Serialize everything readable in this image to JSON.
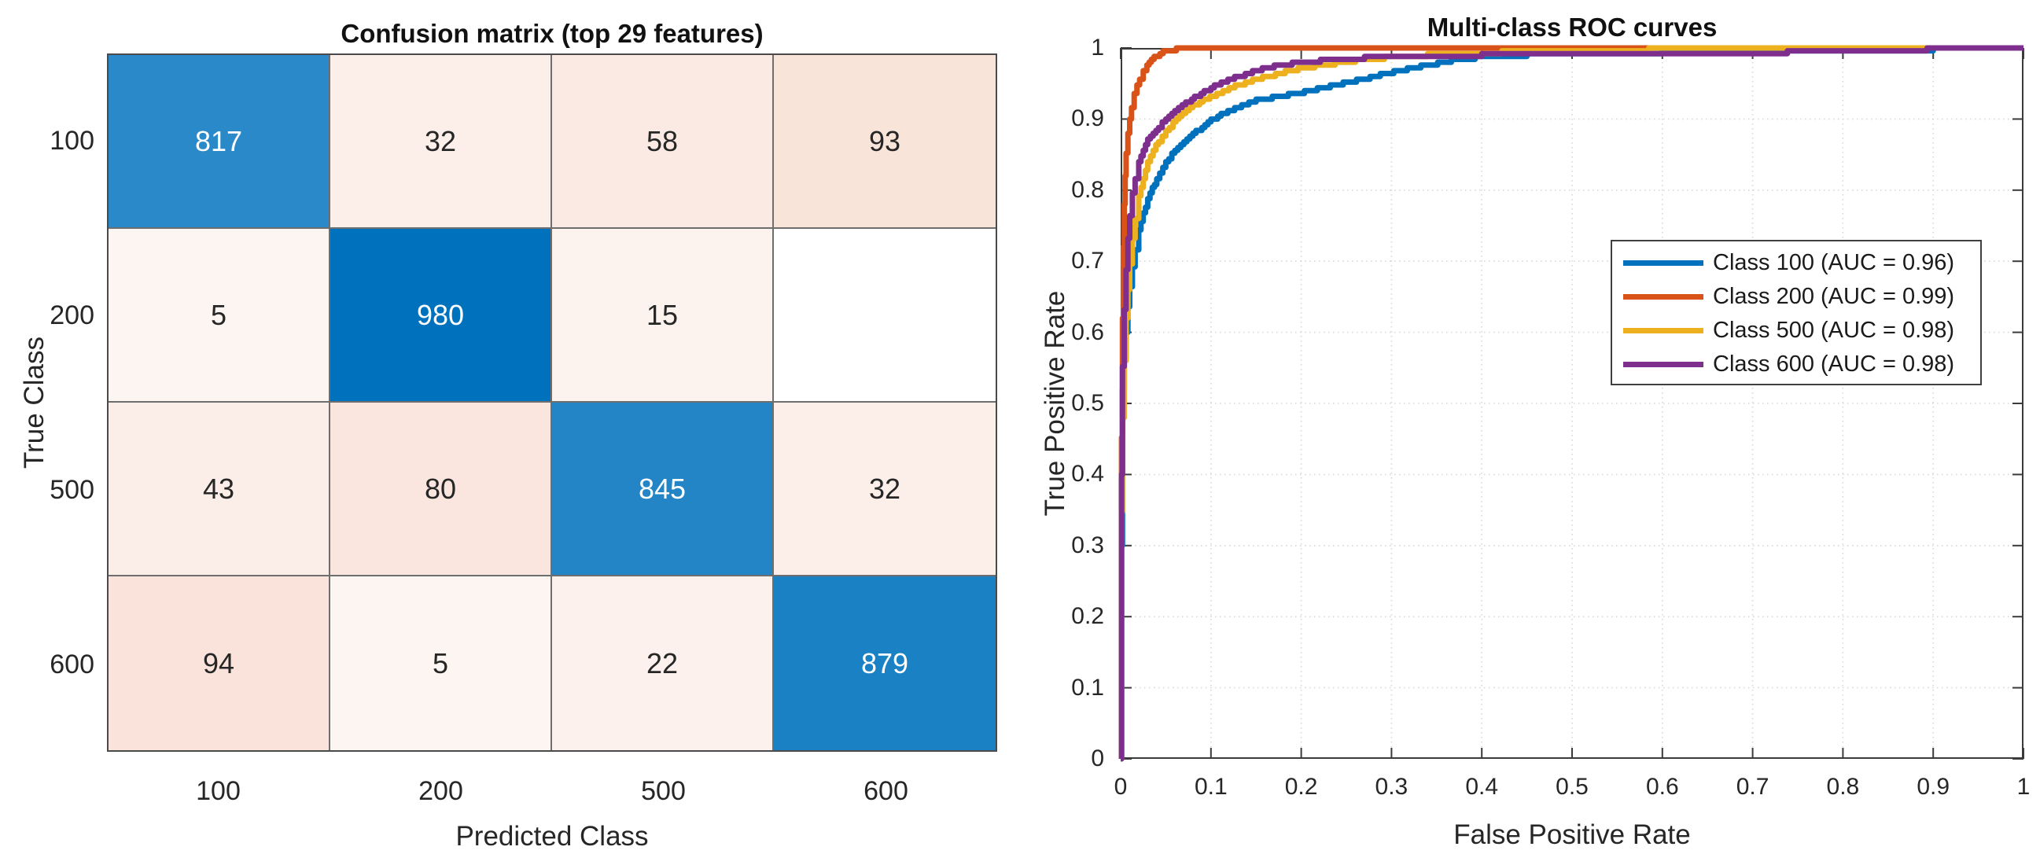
{
  "figure": {
    "background": "#ffffff",
    "axis_color": "#3b3b3b",
    "grid_color": "#d7d7d7",
    "tick_label_color": "#262626"
  },
  "chart_data": [
    {
      "type": "heatmap",
      "kind": "confusion-matrix",
      "title": "Confusion matrix (top 29 features)",
      "xlabel": "Predicted Class",
      "ylabel": "True Class",
      "classes": [
        "100",
        "200",
        "500",
        "600"
      ],
      "matrix": [
        [
          817,
          32,
          58,
          93
        ],
        [
          5,
          980,
          15,
          0
        ],
        [
          43,
          80,
          845,
          32
        ],
        [
          94,
          5,
          22,
          879
        ]
      ],
      "diagonal_color": "#0072BD",
      "offdiagonal_color": "#D95319",
      "diagonal_text_color": "#ffffff",
      "offdiagonal_text_color": "#262626",
      "zero_cell_color": "#ffffff",
      "grid_on": true
    },
    {
      "type": "line",
      "kind": "roc",
      "title": "Multi-class ROC curves",
      "xlabel": "False Positive Rate",
      "ylabel": "True Positive Rate",
      "xlim": [
        0,
        1
      ],
      "ylim": [
        0,
        1
      ],
      "x_ticks": [
        "0",
        "0.1",
        "0.2",
        "0.3",
        "0.4",
        "0.5",
        "0.6",
        "0.7",
        "0.8",
        "0.9",
        "1"
      ],
      "y_ticks": [
        "0",
        "0.1",
        "0.2",
        "0.3",
        "0.4",
        "0.5",
        "0.6",
        "0.7",
        "0.8",
        "0.9",
        "1"
      ],
      "grid": true,
      "legend_position": "inside-right",
      "series": [
        {
          "name": "Class 100",
          "auc": 0.96,
          "color": "#0072BD",
          "legend_label": "Class 100 (AUC = 0.96)",
          "points": [
            [
              0,
              0
            ],
            [
              0.001,
              0.3
            ],
            [
              0.002,
              0.52
            ],
            [
              0.004,
              0.565
            ],
            [
              0.006,
              0.6
            ],
            [
              0.008,
              0.635
            ],
            [
              0.01,
              0.662
            ],
            [
              0.013,
              0.692
            ],
            [
              0.016,
              0.716
            ],
            [
              0.02,
              0.742
            ],
            [
              0.025,
              0.766
            ],
            [
              0.03,
              0.786
            ],
            [
              0.035,
              0.802
            ],
            [
              0.04,
              0.816
            ],
            [
              0.05,
              0.838
            ],
            [
              0.06,
              0.856
            ],
            [
              0.07,
              0.869
            ],
            [
              0.08,
              0.879
            ],
            [
              0.09,
              0.889
            ],
            [
              0.1,
              0.899
            ],
            [
              0.115,
              0.909
            ],
            [
              0.13,
              0.917
            ],
            [
              0.15,
              0.926
            ],
            [
              0.175,
              0.932
            ],
            [
              0.2,
              0.937
            ],
            [
              0.225,
              0.945
            ],
            [
              0.25,
              0.952
            ],
            [
              0.28,
              0.96
            ],
            [
              0.31,
              0.968
            ],
            [
              0.34,
              0.976
            ],
            [
              0.37,
              0.983
            ],
            [
              0.4,
              0.987
            ],
            [
              0.45,
              0.99
            ],
            [
              0.5,
              0.992
            ],
            [
              0.55,
              0.993
            ],
            [
              0.6,
              0.994
            ],
            [
              0.7,
              0.995
            ],
            [
              0.8,
              0.9965
            ],
            [
              0.9,
              0.998
            ],
            [
              0.96,
              0.999
            ],
            [
              1,
              1
            ]
          ]
        },
        {
          "name": "Class 200",
          "auc": 0.99,
          "color": "#D95319",
          "legend_label": "Class 200 (AUC = 0.99)",
          "points": [
            [
              0,
              0
            ],
            [
              0.001,
              0.45
            ],
            [
              0.002,
              0.62
            ],
            [
              0.003,
              0.72
            ],
            [
              0.004,
              0.78
            ],
            [
              0.005,
              0.82
            ],
            [
              0.006,
              0.85
            ],
            [
              0.008,
              0.88
            ],
            [
              0.01,
              0.9
            ],
            [
              0.012,
              0.916
            ],
            [
              0.015,
              0.934
            ],
            [
              0.018,
              0.948
            ],
            [
              0.021,
              0.958
            ],
            [
              0.025,
              0.968
            ],
            [
              0.029,
              0.976
            ],
            [
              0.034,
              0.983
            ],
            [
              0.04,
              0.989
            ],
            [
              0.047,
              0.994
            ],
            [
              0.055,
              0.997
            ],
            [
              0.065,
              0.999
            ],
            [
              0.08,
              1
            ],
            [
              1,
              1
            ]
          ]
        },
        {
          "name": "Class 500",
          "auc": 0.98,
          "color": "#EDB120",
          "legend_label": "Class 500 (AUC = 0.98)",
          "points": [
            [
              0,
              0
            ],
            [
              0.001,
              0.35
            ],
            [
              0.002,
              0.48
            ],
            [
              0.004,
              0.56
            ],
            [
              0.006,
              0.62
            ],
            [
              0.008,
              0.66
            ],
            [
              0.01,
              0.695
            ],
            [
              0.013,
              0.73
            ],
            [
              0.016,
              0.76
            ],
            [
              0.02,
              0.79
            ],
            [
              0.025,
              0.815
            ],
            [
              0.03,
              0.838
            ],
            [
              0.036,
              0.856
            ],
            [
              0.042,
              0.868
            ],
            [
              0.05,
              0.882
            ],
            [
              0.058,
              0.894
            ],
            [
              0.068,
              0.906
            ],
            [
              0.08,
              0.918
            ],
            [
              0.095,
              0.929
            ],
            [
              0.11,
              0.938
            ],
            [
              0.13,
              0.948
            ],
            [
              0.15,
              0.956
            ],
            [
              0.175,
              0.964
            ],
            [
              0.2,
              0.971
            ],
            [
              0.23,
              0.977
            ],
            [
              0.26,
              0.982
            ],
            [
              0.3,
              0.987
            ],
            [
              0.34,
              0.99
            ],
            [
              0.38,
              0.992
            ],
            [
              0.43,
              0.9945
            ],
            [
              0.48,
              0.996
            ],
            [
              0.55,
              0.9975
            ],
            [
              0.62,
              0.9985
            ],
            [
              0.7,
              0.9992
            ],
            [
              0.8,
              0.9998
            ],
            [
              0.85,
              1
            ],
            [
              1,
              1
            ]
          ]
        },
        {
          "name": "Class 600",
          "auc": 0.98,
          "color": "#7E2F8E",
          "legend_label": "Class 600 (AUC = 0.98)",
          "points": [
            [
              0,
              0
            ],
            [
              0.001,
              0.4
            ],
            [
              0.002,
              0.55
            ],
            [
              0.004,
              0.63
            ],
            [
              0.006,
              0.69
            ],
            [
              0.008,
              0.73
            ],
            [
              0.01,
              0.765
            ],
            [
              0.013,
              0.795
            ],
            [
              0.016,
              0.818
            ],
            [
              0.02,
              0.84
            ],
            [
              0.025,
              0.857
            ],
            [
              0.03,
              0.87
            ],
            [
              0.036,
              0.88
            ],
            [
              0.042,
              0.889
            ],
            [
              0.05,
              0.9
            ],
            [
              0.06,
              0.911
            ],
            [
              0.072,
              0.922
            ],
            [
              0.085,
              0.933
            ],
            [
              0.1,
              0.944
            ],
            [
              0.115,
              0.953
            ],
            [
              0.13,
              0.96
            ],
            [
              0.15,
              0.968
            ],
            [
              0.17,
              0.974
            ],
            [
              0.19,
              0.978
            ],
            [
              0.21,
              0.981
            ],
            [
              0.24,
              0.984
            ],
            [
              0.27,
              0.986
            ],
            [
              0.3,
              0.9875
            ],
            [
              0.35,
              0.989
            ],
            [
              0.4,
              0.99
            ],
            [
              0.45,
              0.991
            ],
            [
              0.5,
              0.9915
            ],
            [
              0.6,
              0.9925
            ],
            [
              0.7,
              0.9935
            ],
            [
              0.8,
              0.9948
            ],
            [
              0.85,
              0.996
            ],
            [
              0.88,
              0.997
            ],
            [
              0.9,
              0.9985
            ],
            [
              0.92,
              1
            ],
            [
              1,
              1
            ]
          ]
        }
      ]
    }
  ]
}
